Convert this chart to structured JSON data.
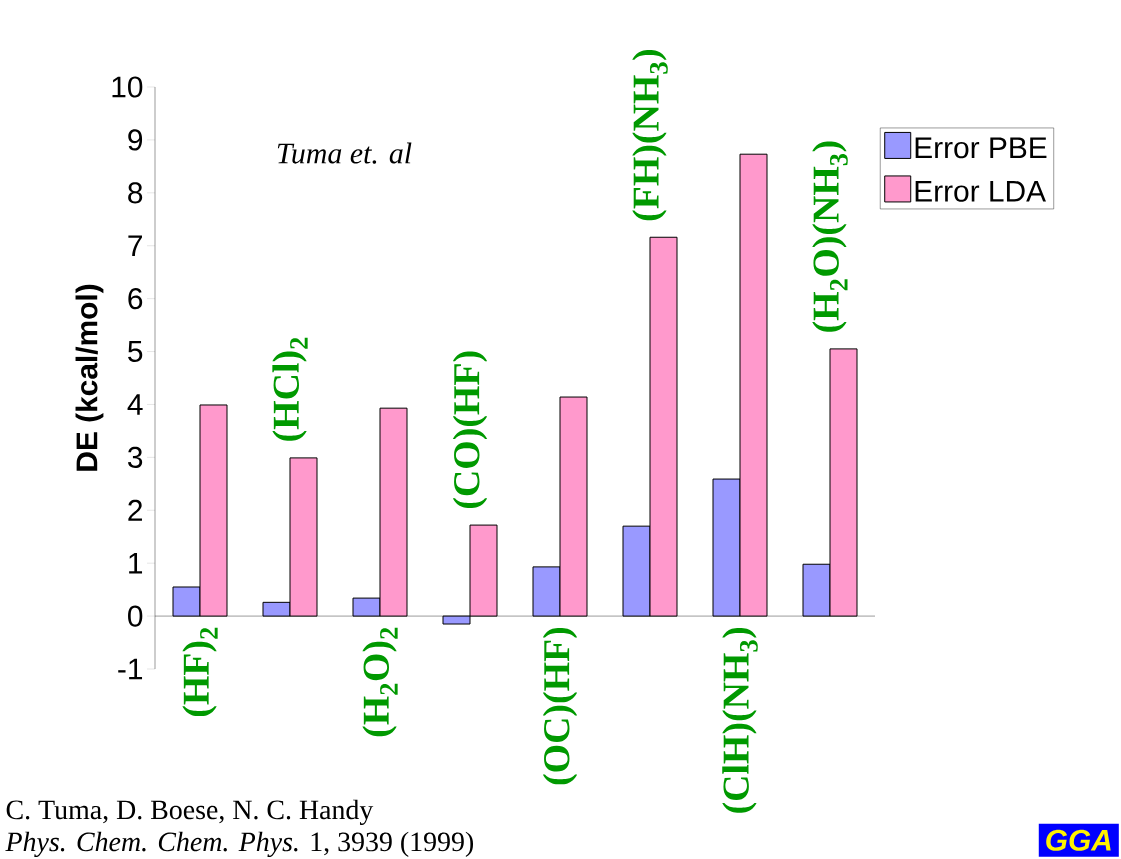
{
  "chart_data": {
    "type": "bar",
    "ylabel": "D**E (kcal/mol)**",
    "categories": [
      "(HF)$_{2}$",
      "(HCl)$_{2}$",
      "(H$_{2}$O)$_{2}$",
      "(CO)(HF)",
      "(OC)(HF)",
      "(FH)(NH$_{3}$)",
      "(ClH)(NH$_{3}$)",
      "(H$_{2}$O)(NH$_{3}$)"
    ],
    "series": [
      {
        "name": "Error PBE",
        "color": "#9999ff",
        "values": [
          0.55,
          0.26,
          0.34,
          -0.15,
          0.93,
          1.7,
          2.59,
          0.98
        ]
      },
      {
        "name": "Error LDA",
        "color": "#ff99cc",
        "values": [
          3.99,
          2.99,
          3.93,
          1.72,
          4.14,
          7.16,
          8.73,
          5.05
        ]
      }
    ],
    "ylim": [
      -1,
      10
    ],
    "yticks": [
      -1,
      0,
      1,
      2,
      3,
      4,
      5,
      6,
      7,
      8,
      9,
      10
    ],
    "legend": "right",
    "grid": false,
    "annotations": [
      "*Tuma et. al*",
      "C. Tuma, D. Boese, N. C. Handy",
      "*Phys. Chem. Chem. Phys.* 1, 3939 (1999)",
      "GGA"
    ]
  }
}
